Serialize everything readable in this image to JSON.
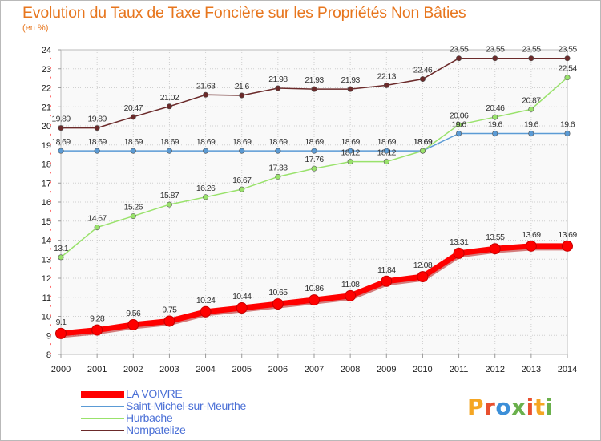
{
  "title": "Evolution du Taux de Taxe Foncière sur les Propriétés Non Bâties",
  "subtitle": "(en %)",
  "logo": "Proxiti",
  "chart_data": {
    "type": "line",
    "title": "Evolution du Taux de Taxe Foncière sur les Propriétés Non Bâties",
    "ylabel": "(en %)",
    "xlabel": "",
    "x": [
      2000,
      2001,
      2002,
      2003,
      2004,
      2005,
      2006,
      2007,
      2008,
      2009,
      2010,
      2011,
      2012,
      2013,
      2014
    ],
    "x_labels": [
      "2000",
      "2001",
      "2002",
      "2003",
      "2004",
      "2005",
      "2006",
      "2007",
      "2008",
      "2009",
      "2010",
      "2011",
      "2012",
      "2013",
      "2014"
    ],
    "ylim": [
      8,
      24
    ],
    "y_ticks": [
      8,
      9,
      10,
      11,
      12,
      13,
      14,
      15,
      16,
      17,
      18,
      19,
      20,
      21,
      22,
      23,
      24
    ],
    "grid": true,
    "legend_position": "bottom-left",
    "series": [
      {
        "name": "LA VOIVRE",
        "color": "#ff0000",
        "values": [
          9.1,
          9.28,
          9.56,
          9.75,
          10.24,
          10.44,
          10.65,
          10.86,
          11.08,
          11.84,
          12.08,
          13.31,
          13.55,
          13.69,
          13.69
        ],
        "labels": [
          "9.1",
          "9.28",
          "9.56",
          "9.75",
          "10.24",
          "10.44",
          "10.65",
          "10.86",
          "11.08",
          "11.84",
          "12.08",
          "13.31",
          "13.55",
          "13.69",
          "13.69"
        ]
      },
      {
        "name": "Saint-Michel-sur-Meurthe",
        "color": "#5b9bd5",
        "values": [
          18.69,
          18.69,
          18.69,
          18.69,
          18.69,
          18.69,
          18.69,
          18.69,
          18.69,
          18.69,
          18.69,
          19.6,
          19.6,
          19.6,
          19.6
        ],
        "labels": [
          "18.69",
          "18.69",
          "18.69",
          "18.69",
          "18.69",
          "18.69",
          "18.69",
          "18.69",
          "18.69",
          "18.69",
          "18.69",
          "19.6",
          "19.6",
          "19.6",
          "19.6"
        ]
      },
      {
        "name": "Hurbache",
        "color": "#99e26b",
        "values": [
          13.1,
          14.67,
          15.26,
          15.87,
          16.26,
          16.67,
          17.33,
          17.76,
          18.12,
          18.12,
          18.69,
          20.06,
          20.46,
          20.87,
          22.54
        ],
        "labels": [
          "13.1",
          "14.67",
          "15.26",
          "15.87",
          "16.26",
          "16.67",
          "17.33",
          "17.76",
          "18.12",
          "18.12",
          "18.69",
          "20.06",
          "20.46",
          "20.87",
          "22.54"
        ]
      },
      {
        "name": "Nompatelize",
        "color": "#6b2a2a",
        "values": [
          19.89,
          19.89,
          20.47,
          21.02,
          21.63,
          21.6,
          21.98,
          21.93,
          21.93,
          22.13,
          22.46,
          23.55,
          23.55,
          23.55,
          23.55
        ],
        "labels": [
          "19.89",
          "19.89",
          "20.47",
          "21.02",
          "21.63",
          "21.6",
          "21.98",
          "21.93",
          "21.93",
          "22.13",
          "22.46",
          "23.55",
          "23.55",
          "23.55",
          "23.55"
        ]
      }
    ]
  }
}
